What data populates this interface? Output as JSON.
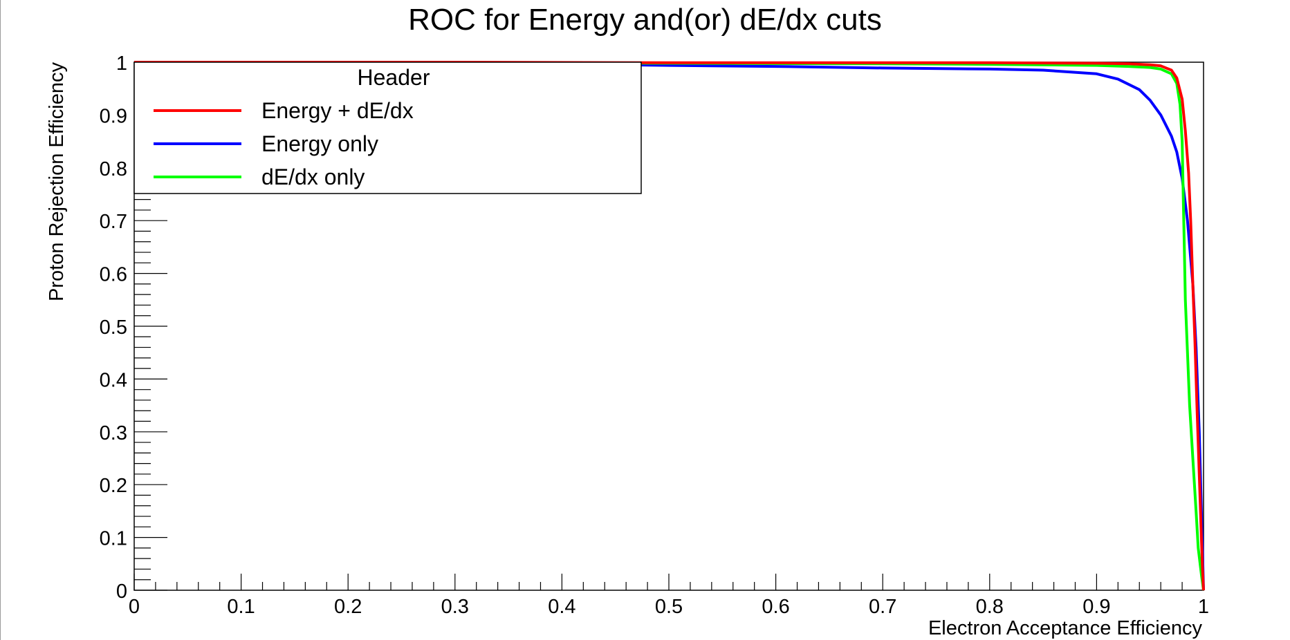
{
  "chart_data": {
    "type": "line",
    "title": "ROC for Energy and(or) dE/dx cuts",
    "xlabel": "Electron Acceptance Efficiency",
    "ylabel": "Proton Rejection Efficiency",
    "xlim": [
      0,
      1
    ],
    "ylim": [
      0,
      1
    ],
    "xticks": [
      "0",
      "0.1",
      "0.2",
      "0.3",
      "0.4",
      "0.5",
      "0.6",
      "0.7",
      "0.8",
      "0.9",
      "1"
    ],
    "yticks": [
      "0",
      "0.1",
      "0.2",
      "0.3",
      "0.4",
      "0.5",
      "0.6",
      "0.7",
      "0.8",
      "0.9",
      "1"
    ],
    "grid": false,
    "legend": {
      "header": "Header",
      "placement": "top-left"
    },
    "series": [
      {
        "name": "Energy + dE/dx",
        "color": "#ff0000",
        "x": [
          0,
          0.1,
          0.3,
          0.5,
          0.7,
          0.8,
          0.9,
          0.93,
          0.95,
          0.96,
          0.97,
          0.975,
          0.98,
          0.983,
          0.986,
          0.988,
          0.99,
          0.992,
          0.994,
          0.996,
          0.998,
          0.999,
          1.0
        ],
        "y": [
          1.0,
          1.0,
          1.0,
          0.999,
          0.999,
          0.999,
          0.998,
          0.997,
          0.995,
          0.993,
          0.985,
          0.97,
          0.93,
          0.87,
          0.79,
          0.7,
          0.58,
          0.47,
          0.34,
          0.22,
          0.1,
          0.04,
          0.0
        ]
      },
      {
        "name": "Energy only",
        "color": "#0000ff",
        "x": [
          0,
          0.1,
          0.3,
          0.5,
          0.6,
          0.7,
          0.8,
          0.85,
          0.9,
          0.92,
          0.94,
          0.95,
          0.96,
          0.97,
          0.975,
          0.98,
          0.985,
          0.99,
          0.993,
          0.996,
          0.998,
          1.0
        ],
        "y": [
          1.0,
          1.0,
          0.999,
          0.994,
          0.992,
          0.989,
          0.987,
          0.985,
          0.978,
          0.968,
          0.948,
          0.928,
          0.9,
          0.86,
          0.83,
          0.78,
          0.7,
          0.58,
          0.46,
          0.3,
          0.15,
          0.0
        ]
      },
      {
        "name": "dE/dx only",
        "color": "#00ff00",
        "x": [
          0,
          0.1,
          0.3,
          0.5,
          0.7,
          0.8,
          0.9,
          0.93,
          0.95,
          0.96,
          0.97,
          0.975,
          0.978,
          0.98,
          0.981,
          0.982,
          0.983,
          0.985,
          0.987,
          0.99,
          0.993,
          0.995,
          0.998,
          1.0
        ],
        "y": [
          1.0,
          1.0,
          0.999,
          0.998,
          0.997,
          0.996,
          0.994,
          0.992,
          0.99,
          0.987,
          0.978,
          0.96,
          0.92,
          0.85,
          0.75,
          0.65,
          0.55,
          0.45,
          0.35,
          0.25,
          0.15,
          0.08,
          0.03,
          0.0
        ]
      }
    ]
  }
}
